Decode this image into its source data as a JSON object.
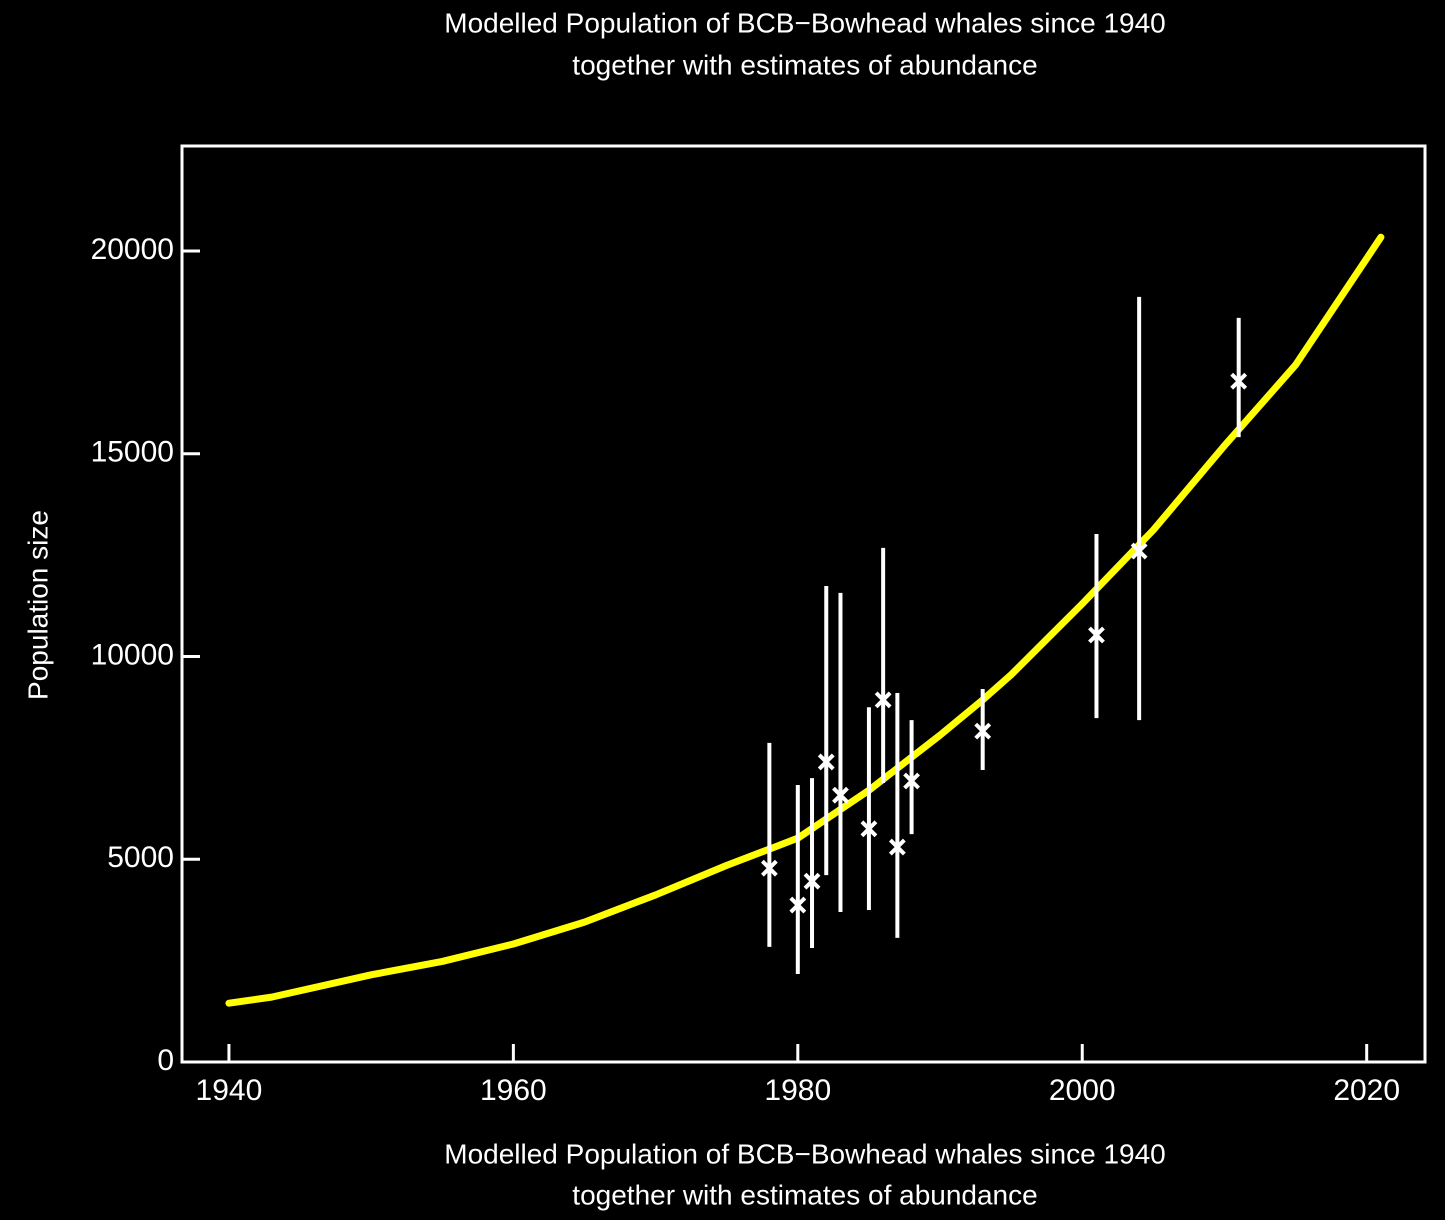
{
  "chart_data": {
    "type": "line",
    "title": [
      "Modelled Population of BCB−Bowhead whales since 1940",
      "together with estimates of abundance"
    ],
    "x_label": [
      "Modelled Population of BCB−Bowhead whales since 1940",
      "together with estimates of abundance"
    ],
    "y_label": "Population size",
    "xlim": [
      1936.7,
      2024.1
    ],
    "ylim": [
      0,
      22590
    ],
    "xticks": [
      1940,
      1960,
      1980,
      2000,
      2020
    ],
    "yticks": [
      0,
      5000,
      10000,
      15000,
      20000
    ],
    "series": [
      {
        "type": "line",
        "color": "#ffff00",
        "x": [
          1940,
          1943,
          1950,
          1955,
          1960,
          1965,
          1970,
          1975,
          1978,
          1980,
          1985,
          1990,
          1993,
          1995,
          2000,
          2005,
          2010,
          2015,
          2021
        ],
        "values": [
          1450,
          1600,
          2150,
          2480,
          2910,
          3450,
          4120,
          4850,
          5250,
          5520,
          6700,
          8060,
          8930,
          9550,
          11300,
          13120,
          15200,
          17190,
          20340
        ]
      },
      {
        "type": "errorbar",
        "color": "#ffffff",
        "x": [
          1978,
          1980,
          1981,
          1982,
          1983,
          1985,
          1986,
          1987,
          1988,
          1993,
          2001,
          2004,
          2011
        ],
        "values": [
          4780,
          3870,
          4460,
          7400,
          6580,
          5750,
          8930,
          5300,
          6930,
          8160,
          10530,
          12600,
          16790
        ],
        "lower": [
          2840,
          2170,
          2810,
          4610,
          3700,
          3750,
          6880,
          3060,
          5620,
          7200,
          8480,
          8430,
          15410
        ],
        "upper": [
          7870,
          6830,
          7000,
          11740,
          11570,
          8750,
          12680,
          9100,
          8430,
          9200,
          13020,
          18870,
          18350
        ]
      }
    ]
  }
}
